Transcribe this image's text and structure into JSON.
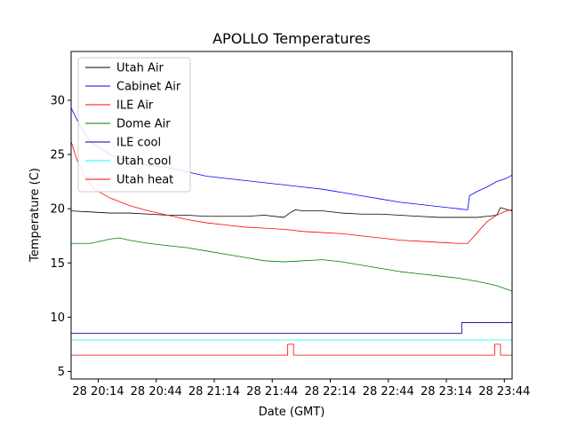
{
  "chart_data": {
    "type": "line",
    "title": "APOLLO Temperatures",
    "xlabel": "Date (GMT)",
    "ylabel": "Temperature (C)",
    "x_unit": "minutes since 28 20:00 GMT",
    "xlim": [
      0,
      228
    ],
    "ylim": [
      4.3,
      34.5
    ],
    "x_ticks": [
      {
        "value": 14,
        "label": "28 20:14"
      },
      {
        "value": 44,
        "label": "28 20:44"
      },
      {
        "value": 74,
        "label": "28 21:14"
      },
      {
        "value": 104,
        "label": "28 21:44"
      },
      {
        "value": 134,
        "label": "28 22:14"
      },
      {
        "value": 164,
        "label": "28 22:44"
      },
      {
        "value": 194,
        "label": "28 23:14"
      },
      {
        "value": 224,
        "label": "28 23:44"
      }
    ],
    "y_ticks": [
      5,
      10,
      15,
      20,
      25,
      30
    ],
    "legend_position": "top-left",
    "series": [
      {
        "name": "Utah Air",
        "color": "#000000",
        "x": [
          0,
          10,
          20,
          30,
          40,
          50,
          60,
          70,
          80,
          90,
          100,
          110,
          113,
          116,
          120,
          130,
          140,
          150,
          160,
          170,
          180,
          190,
          200,
          210,
          215,
          220,
          222,
          228
        ],
        "y": [
          19.8,
          19.7,
          19.6,
          19.6,
          19.5,
          19.4,
          19.4,
          19.3,
          19.3,
          19.3,
          19.4,
          19.2,
          19.6,
          19.9,
          19.8,
          19.8,
          19.6,
          19.5,
          19.5,
          19.4,
          19.3,
          19.2,
          19.2,
          19.2,
          19.3,
          19.4,
          20.1,
          19.8
        ]
      },
      {
        "name": "Cabinet Air",
        "color": "#0000ff",
        "x": [
          0,
          5,
          10,
          20,
          30,
          40,
          50,
          60,
          70,
          80,
          90,
          100,
          110,
          120,
          130,
          140,
          150,
          160,
          170,
          180,
          190,
          200,
          205,
          206,
          210,
          215,
          220,
          225,
          228
        ],
        "y": [
          29.3,
          27.5,
          26.2,
          25.0,
          24.3,
          24.0,
          23.8,
          23.4,
          23.0,
          22.8,
          22.6,
          22.4,
          22.2,
          22.0,
          21.8,
          21.5,
          21.2,
          20.9,
          20.6,
          20.4,
          20.2,
          20.0,
          19.9,
          21.2,
          21.6,
          22.0,
          22.5,
          22.8,
          23.1
        ]
      },
      {
        "name": "ILE Air",
        "color": "#ff0000",
        "x": [
          0,
          3,
          7,
          12,
          20,
          30,
          40,
          50,
          60,
          70,
          80,
          90,
          100,
          110,
          120,
          130,
          140,
          150,
          160,
          170,
          180,
          190,
          200,
          205,
          210,
          215,
          220,
          225,
          228
        ],
        "y": [
          26.2,
          24.5,
          23.0,
          21.8,
          21.0,
          20.3,
          19.8,
          19.4,
          19.0,
          18.7,
          18.5,
          18.3,
          18.2,
          18.1,
          17.9,
          17.8,
          17.7,
          17.5,
          17.3,
          17.1,
          17.0,
          16.9,
          16.8,
          16.8,
          17.8,
          18.8,
          19.4,
          19.8,
          19.9
        ]
      },
      {
        "name": "Dome Air",
        "color": "#008000",
        "x": [
          0,
          10,
          20,
          25,
          30,
          40,
          50,
          60,
          70,
          80,
          90,
          100,
          110,
          120,
          130,
          140,
          150,
          160,
          170,
          180,
          190,
          200,
          210,
          220,
          228
        ],
        "y": [
          16.8,
          16.8,
          17.2,
          17.3,
          17.1,
          16.8,
          16.6,
          16.4,
          16.1,
          15.8,
          15.5,
          15.2,
          15.1,
          15.2,
          15.3,
          15.1,
          14.8,
          14.5,
          14.2,
          14.0,
          13.8,
          13.6,
          13.3,
          12.9,
          12.4
        ]
      },
      {
        "name": "ILE cool",
        "color": "#00008b",
        "x": [
          0,
          202,
          202,
          228
        ],
        "y": [
          8.5,
          8.5,
          9.5,
          9.5
        ]
      },
      {
        "name": "Utah cool",
        "color": "#00ffff",
        "x": [
          0,
          228
        ],
        "y": [
          7.9,
          7.9
        ]
      },
      {
        "name": "Utah heat",
        "color": "#ff0000",
        "x": [
          0,
          112,
          112,
          115,
          115,
          219,
          219,
          222,
          222,
          228
        ],
        "y": [
          6.5,
          6.5,
          7.5,
          7.5,
          6.5,
          6.5,
          7.5,
          7.5,
          6.5,
          6.5
        ]
      }
    ]
  }
}
